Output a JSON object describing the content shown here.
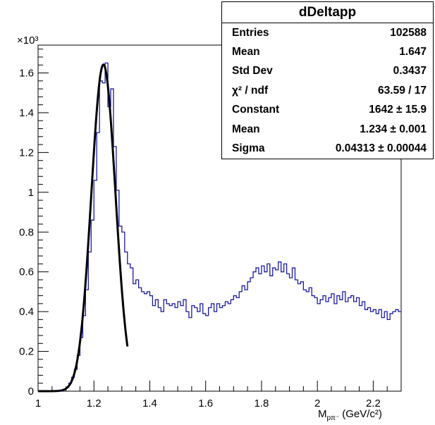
{
  "chart_data": {
    "type": "histogram",
    "title": "dDeltapp",
    "xlabel": "M",
    "xlabel_subscript": "pπ⁻",
    "xlabel_unit": "(GeV/c²)",
    "y_multiplier": "×10³",
    "xlim": [
      1.0,
      2.3
    ],
    "ylim": [
      0,
      1.74
    ],
    "x_ticks": [
      1,
      1.2,
      1.4,
      1.6,
      1.8,
      2,
      2.2
    ],
    "y_ticks": [
      0,
      0.2,
      0.4,
      0.6,
      0.8,
      1,
      1.2,
      1.4,
      1.6
    ],
    "bin_width": 0.01,
    "bin_start": 1.0,
    "histogram_color": "#1a1aa6",
    "histogram_values": [
      0.0,
      0.0,
      0.0,
      0.0,
      0.0,
      0.0,
      0.0,
      0.0,
      0.0,
      0.01,
      0.02,
      0.04,
      0.07,
      0.11,
      0.18,
      0.27,
      0.38,
      0.51,
      0.7,
      0.86,
      1.06,
      1.3,
      1.56,
      1.55,
      1.65,
      1.43,
      1.52,
      1.23,
      1.01,
      0.83,
      0.8,
      0.7,
      0.64,
      0.62,
      0.54,
      0.56,
      0.52,
      0.5,
      0.49,
      0.5,
      0.48,
      0.43,
      0.46,
      0.42,
      0.4,
      0.46,
      0.44,
      0.43,
      0.44,
      0.42,
      0.45,
      0.43,
      0.46,
      0.4,
      0.37,
      0.43,
      0.42,
      0.4,
      0.44,
      0.39,
      0.38,
      0.42,
      0.44,
      0.4,
      0.44,
      0.42,
      0.43,
      0.45,
      0.44,
      0.46,
      0.48,
      0.47,
      0.5,
      0.53,
      0.51,
      0.55,
      0.57,
      0.6,
      0.62,
      0.59,
      0.63,
      0.6,
      0.64,
      0.58,
      0.62,
      0.61,
      0.65,
      0.6,
      0.64,
      0.59,
      0.57,
      0.62,
      0.56,
      0.54,
      0.55,
      0.51,
      0.5,
      0.52,
      0.48,
      0.47,
      0.44,
      0.46,
      0.48,
      0.45,
      0.47,
      0.49,
      0.44,
      0.48,
      0.46,
      0.5,
      0.45,
      0.47,
      0.48,
      0.45,
      0.47,
      0.43,
      0.45,
      0.41,
      0.42,
      0.4,
      0.41,
      0.39,
      0.41,
      0.37,
      0.4,
      0.36,
      0.39,
      0.4,
      0.41,
      0.4
    ],
    "fit": {
      "function": "gaus",
      "constant": 1642,
      "mean": 1.234,
      "sigma": 0.04313,
      "x_range": [
        1.0,
        1.32
      ],
      "color": "#000000"
    }
  },
  "stats_box": {
    "title": "dDeltapp",
    "rows": [
      {
        "label": "Entries",
        "value": "102588"
      },
      {
        "label": "Mean",
        "value": "1.647"
      },
      {
        "label": "Std Dev",
        "value": "0.3437"
      },
      {
        "label": "χ² / ndf",
        "value": "63.59 / 17"
      },
      {
        "label": "Constant",
        "value": "1642 ± 15.9"
      },
      {
        "label": "Mean",
        "value": "1.234 ± 0.001"
      },
      {
        "label": "Sigma",
        "value": "0.04313 ± 0.00044"
      }
    ]
  }
}
